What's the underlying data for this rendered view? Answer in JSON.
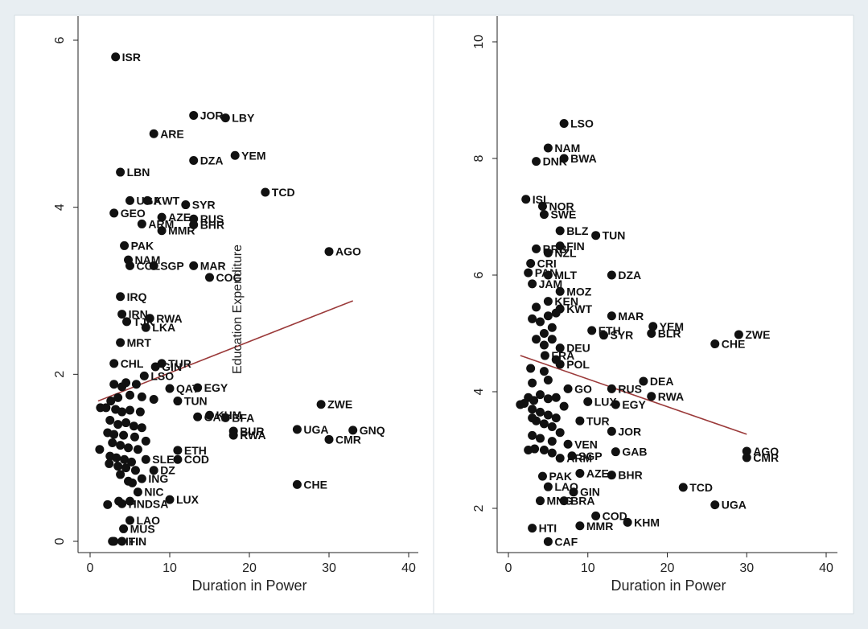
{
  "chart_data": [
    {
      "type": "scatter",
      "title": "",
      "xlabel": "Duration in Power",
      "ylabel": "",
      "xlim": [
        0,
        40
      ],
      "ylim": [
        0,
        6
      ],
      "xticks": [
        0,
        10,
        20,
        30,
        40
      ],
      "yticks": [
        0,
        2,
        4,
        6
      ],
      "overlay_label": "Education Expenditure",
      "fit_line": {
        "x": [
          1,
          33
        ],
        "y": [
          1.68,
          2.88
        ],
        "color": "#9b3a3a"
      },
      "points": [
        {
          "label": "ISR",
          "x": 3.2,
          "y": 5.8
        },
        {
          "label": "JOR",
          "x": 13,
          "y": 5.1
        },
        {
          "label": "LBY",
          "x": 17,
          "y": 5.07
        },
        {
          "label": "ARE",
          "x": 8,
          "y": 4.88
        },
        {
          "label": "YEM",
          "x": 18.2,
          "y": 4.62
        },
        {
          "label": "DZA",
          "x": 13,
          "y": 4.56
        },
        {
          "label": "LBN",
          "x": 3.8,
          "y": 4.42
        },
        {
          "label": "TCD",
          "x": 22,
          "y": 4.18
        },
        {
          "label": "UGA",
          "x": 5,
          "y": 4.08
        },
        {
          "label": "KWT",
          "x": 7.2,
          "y": 4.08
        },
        {
          "label": "SYR",
          "x": 12,
          "y": 4.03
        },
        {
          "label": "GEO",
          "x": 3,
          "y": 3.93
        },
        {
          "label": "AZE",
          "x": 9,
          "y": 3.88
        },
        {
          "label": "RUS",
          "x": 13,
          "y": 3.86
        },
        {
          "label": "ARM",
          "x": 6.5,
          "y": 3.8
        },
        {
          "label": "BHR",
          "x": 13,
          "y": 3.79
        },
        {
          "label": "MMR",
          "x": 9,
          "y": 3.72
        },
        {
          "label": "PAK",
          "x": 4.3,
          "y": 3.54
        },
        {
          "label": "AGO",
          "x": 30,
          "y": 3.47
        },
        {
          "label": "NAM",
          "x": 4.8,
          "y": 3.37
        },
        {
          "label": "COL",
          "x": 5,
          "y": 3.3
        },
        {
          "label": "SGP",
          "x": 8,
          "y": 3.3
        },
        {
          "label": "MAR",
          "x": 13,
          "y": 3.3
        },
        {
          "label": "COG",
          "x": 15,
          "y": 3.16
        },
        {
          "label": "IRQ",
          "x": 3.8,
          "y": 2.93
        },
        {
          "label": "IRN",
          "x": 4,
          "y": 2.72
        },
        {
          "label": "RWA",
          "x": 7.5,
          "y": 2.67
        },
        {
          "label": "TJK",
          "x": 4.6,
          "y": 2.63
        },
        {
          "label": "LKA",
          "x": 7,
          "y": 2.56
        },
        {
          "label": "MRT",
          "x": 3.8,
          "y": 2.38
        },
        {
          "label": "CHL",
          "x": 3,
          "y": 2.13
        },
        {
          "label": "TUR",
          "x": 9,
          "y": 2.13
        },
        {
          "label": "GIN",
          "x": 8.2,
          "y": 2.09
        },
        {
          "label": "LSO",
          "x": 6.8,
          "y": 1.98
        },
        {
          "label": "QAT",
          "x": 10,
          "y": 1.83
        },
        {
          "label": "EGY",
          "x": 13.5,
          "y": 1.84
        },
        {
          "label": "TUN",
          "x": 11,
          "y": 1.68
        },
        {
          "label": "ZWE",
          "x": 29,
          "y": 1.64
        },
        {
          "label": "KHM",
          "x": 15,
          "y": 1.51
        },
        {
          "label": "BFA",
          "x": 17,
          "y": 1.48
        },
        {
          "label": "GAB",
          "x": 13.5,
          "y": 1.49
        },
        {
          "label": "BUR",
          "x": 18,
          "y": 1.32
        },
        {
          "label": "RWA",
          "x": 18,
          "y": 1.27
        },
        {
          "label": "UGA",
          "x": 26,
          "y": 1.34
        },
        {
          "label": "GNQ",
          "x": 33,
          "y": 1.33
        },
        {
          "label": "CMR",
          "x": 30,
          "y": 1.22
        },
        {
          "label": "ETH",
          "x": 11,
          "y": 1.09
        },
        {
          "label": "COD",
          "x": 11,
          "y": 0.98
        },
        {
          "label": "SLE",
          "x": 7,
          "y": 0.98
        },
        {
          "label": "DZ",
          "x": 8,
          "y": 0.85
        },
        {
          "label": "ING",
          "x": 6.5,
          "y": 0.75
        },
        {
          "label": "CHE",
          "x": 26,
          "y": 0.68
        },
        {
          "label": "NIC",
          "x": 6,
          "y": 0.59
        },
        {
          "label": "LUX",
          "x": 10,
          "y": 0.5
        },
        {
          "label": "HNDSA",
          "x": 4,
          "y": 0.45
        },
        {
          "label": "LAO",
          "x": 5,
          "y": 0.25
        },
        {
          "label": "MUS",
          "x": 4.2,
          "y": 0.15
        },
        {
          "label": "HTI",
          "x": 3,
          "y": 0.0
        },
        {
          "label": "FIN",
          "x": 4,
          "y": 0.0
        },
        {
          "label": "",
          "x": 1.3,
          "y": 1.6
        },
        {
          "label": "",
          "x": 2,
          "y": 1.6
        },
        {
          "label": "",
          "x": 3.2,
          "y": 1.58
        },
        {
          "label": "",
          "x": 4,
          "y": 1.55
        },
        {
          "label": "",
          "x": 5,
          "y": 1.57
        },
        {
          "label": "",
          "x": 6.3,
          "y": 1.55
        },
        {
          "label": "",
          "x": 2.5,
          "y": 1.45
        },
        {
          "label": "",
          "x": 3.5,
          "y": 1.4
        },
        {
          "label": "",
          "x": 4.5,
          "y": 1.42
        },
        {
          "label": "",
          "x": 5.5,
          "y": 1.38
        },
        {
          "label": "",
          "x": 6.5,
          "y": 1.36
        },
        {
          "label": "",
          "x": 2.2,
          "y": 1.3
        },
        {
          "label": "",
          "x": 3,
          "y": 1.28
        },
        {
          "label": "",
          "x": 4.2,
          "y": 1.27
        },
        {
          "label": "",
          "x": 5.6,
          "y": 1.25
        },
        {
          "label": "",
          "x": 7,
          "y": 1.2
        },
        {
          "label": "",
          "x": 2.8,
          "y": 1.18
        },
        {
          "label": "",
          "x": 3.8,
          "y": 1.15
        },
        {
          "label": "",
          "x": 4.8,
          "y": 1.12
        },
        {
          "label": "",
          "x": 6,
          "y": 1.1
        },
        {
          "label": "",
          "x": 1.2,
          "y": 1.1
        },
        {
          "label": "",
          "x": 2.5,
          "y": 1.02
        },
        {
          "label": "",
          "x": 3.3,
          "y": 1.0
        },
        {
          "label": "",
          "x": 4.3,
          "y": 0.98
        },
        {
          "label": "",
          "x": 5.2,
          "y": 0.95
        },
        {
          "label": "",
          "x": 2.4,
          "y": 0.93
        },
        {
          "label": "",
          "x": 3.5,
          "y": 0.9
        },
        {
          "label": "",
          "x": 4.5,
          "y": 0.88
        },
        {
          "label": "",
          "x": 5.7,
          "y": 0.85
        },
        {
          "label": "",
          "x": 3.8,
          "y": 0.8
        },
        {
          "label": "",
          "x": 4.8,
          "y": 0.72
        },
        {
          "label": "",
          "x": 5.3,
          "y": 0.7
        },
        {
          "label": "",
          "x": 2.2,
          "y": 0.44
        },
        {
          "label": "",
          "x": 3.6,
          "y": 0.48
        },
        {
          "label": "",
          "x": 5,
          "y": 0.48
        },
        {
          "label": "",
          "x": 2.8,
          "y": 0.0
        },
        {
          "label": "",
          "x": 3.5,
          "y": 1.72
        },
        {
          "label": "",
          "x": 5,
          "y": 1.75
        },
        {
          "label": "",
          "x": 6.5,
          "y": 1.73
        },
        {
          "label": "",
          "x": 3,
          "y": 1.88
        },
        {
          "label": "",
          "x": 4.5,
          "y": 1.9
        },
        {
          "label": "",
          "x": 5.8,
          "y": 1.88
        },
        {
          "label": "",
          "x": 4,
          "y": 1.85
        },
        {
          "label": "",
          "x": 2.6,
          "y": 1.68
        },
        {
          "label": "",
          "x": 8,
          "y": 1.7
        }
      ]
    },
    {
      "type": "scatter",
      "title": "",
      "xlabel": "Duration in Power",
      "ylabel": "",
      "xlim": [
        0,
        40
      ],
      "ylim": [
        1.2,
        10
      ],
      "xticks": [
        0,
        10,
        20,
        30,
        40
      ],
      "yticks": [
        2,
        4,
        6,
        8,
        10
      ],
      "fit_line": {
        "x": [
          1.5,
          30
        ],
        "y": [
          4.62,
          3.27
        ],
        "color": "#9b3a3a"
      },
      "points": [
        {
          "label": "LSO",
          "x": 7,
          "y": 8.6
        },
        {
          "label": "NAM",
          "x": 5,
          "y": 8.18
        },
        {
          "label": "BWA",
          "x": 7,
          "y": 8.0
        },
        {
          "label": "DNK",
          "x": 3.5,
          "y": 7.95
        },
        {
          "label": "ISL",
          "x": 2.2,
          "y": 7.3
        },
        {
          "label": "NOR",
          "x": 4.3,
          "y": 7.18
        },
        {
          "label": "SWE",
          "x": 4.5,
          "y": 7.04
        },
        {
          "label": "BLZ",
          "x": 6.5,
          "y": 6.76
        },
        {
          "label": "TUN",
          "x": 11,
          "y": 6.68
        },
        {
          "label": "FIN",
          "x": 6.5,
          "y": 6.5
        },
        {
          "label": "BRB",
          "x": 3.5,
          "y": 6.45
        },
        {
          "label": "NZL",
          "x": 5,
          "y": 6.38
        },
        {
          "label": "CRI",
          "x": 2.8,
          "y": 6.2
        },
        {
          "label": "MLT",
          "x": 5,
          "y": 6.0
        },
        {
          "label": "PAN",
          "x": 2.5,
          "y": 6.04
        },
        {
          "label": "DZA",
          "x": 13,
          "y": 6.0
        },
        {
          "label": "JAM",
          "x": 3,
          "y": 5.85
        },
        {
          "label": "MOZ",
          "x": 6.5,
          "y": 5.72
        },
        {
          "label": "KEN",
          "x": 5,
          "y": 5.55
        },
        {
          "label": "KWT",
          "x": 6.5,
          "y": 5.42
        },
        {
          "label": "MAR",
          "x": 13,
          "y": 5.3
        },
        {
          "label": "YEM",
          "x": 18.2,
          "y": 5.12
        },
        {
          "label": "ETH",
          "x": 10.5,
          "y": 5.05
        },
        {
          "label": "BLR",
          "x": 18,
          "y": 5.0
        },
        {
          "label": "ZWE",
          "x": 29,
          "y": 4.98
        },
        {
          "label": "SYR",
          "x": 12,
          "y": 4.97
        },
        {
          "label": "CHE",
          "x": 26,
          "y": 4.82
        },
        {
          "label": "DEU",
          "x": 6.5,
          "y": 4.75
        },
        {
          "label": "FRA",
          "x": 4.6,
          "y": 4.62
        },
        {
          "label": "POL",
          "x": 6.5,
          "y": 4.47
        },
        {
          "label": "DEA",
          "x": 17,
          "y": 4.18
        },
        {
          "label": "RUS",
          "x": 13,
          "y": 4.05
        },
        {
          "label": "RWA",
          "x": 18,
          "y": 3.92
        },
        {
          "label": "GO",
          "x": 7.5,
          "y": 4.05
        },
        {
          "label": "LUX",
          "x": 10,
          "y": 3.83
        },
        {
          "label": "EGY",
          "x": 13.5,
          "y": 3.78
        },
        {
          "label": "TUR",
          "x": 9,
          "y": 3.5
        },
        {
          "label": "JOR",
          "x": 13,
          "y": 3.32
        },
        {
          "label": "VEN",
          "x": 7.5,
          "y": 3.1
        },
        {
          "label": "GAB",
          "x": 13.5,
          "y": 2.97
        },
        {
          "label": "AGO",
          "x": 30,
          "y": 2.98
        },
        {
          "label": "CMR",
          "x": 30,
          "y": 2.87
        },
        {
          "label": "SGP",
          "x": 8,
          "y": 2.9
        },
        {
          "label": "ARM",
          "x": 6.5,
          "y": 2.86
        },
        {
          "label": "AZE",
          "x": 9,
          "y": 2.6
        },
        {
          "label": "BHR",
          "x": 13,
          "y": 2.57
        },
        {
          "label": "PAK",
          "x": 4.3,
          "y": 2.55
        },
        {
          "label": "TCD",
          "x": 22,
          "y": 2.36
        },
        {
          "label": "LAO",
          "x": 5,
          "y": 2.37
        },
        {
          "label": "GIN",
          "x": 8.2,
          "y": 2.28
        },
        {
          "label": "UGA",
          "x": 26,
          "y": 2.06
        },
        {
          "label": "MNG",
          "x": 4,
          "y": 2.13
        },
        {
          "label": "BRA",
          "x": 7,
          "y": 2.13
        },
        {
          "label": "COD",
          "x": 11,
          "y": 1.87
        },
        {
          "label": "KHM",
          "x": 15,
          "y": 1.76
        },
        {
          "label": "MMR",
          "x": 9,
          "y": 1.7
        },
        {
          "label": "HTI",
          "x": 3,
          "y": 1.66
        },
        {
          "label": "CAF",
          "x": 5,
          "y": 1.43
        },
        {
          "label": "",
          "x": 1.5,
          "y": 3.78
        },
        {
          "label": "",
          "x": 2.5,
          "y": 3.9
        },
        {
          "label": "",
          "x": 3.2,
          "y": 3.85
        },
        {
          "label": "",
          "x": 4,
          "y": 3.95
        },
        {
          "label": "",
          "x": 5,
          "y": 3.88
        },
        {
          "label": "",
          "x": 6,
          "y": 3.9
        },
        {
          "label": "",
          "x": 3,
          "y": 3.7
        },
        {
          "label": "",
          "x": 4,
          "y": 3.65
        },
        {
          "label": "",
          "x": 5,
          "y": 3.6
        },
        {
          "label": "",
          "x": 6,
          "y": 3.55
        },
        {
          "label": "",
          "x": 3.5,
          "y": 3.5
        },
        {
          "label": "",
          "x": 4.5,
          "y": 3.45
        },
        {
          "label": "",
          "x": 5.5,
          "y": 3.4
        },
        {
          "label": "",
          "x": 6.5,
          "y": 3.3
        },
        {
          "label": "",
          "x": 3,
          "y": 3.25
        },
        {
          "label": "",
          "x": 4,
          "y": 3.2
        },
        {
          "label": "",
          "x": 5.5,
          "y": 3.15
        },
        {
          "label": "",
          "x": 2.5,
          "y": 3.0
        },
        {
          "label": "",
          "x": 3.3,
          "y": 3.02
        },
        {
          "label": "",
          "x": 4.5,
          "y": 3.0
        },
        {
          "label": "",
          "x": 5.5,
          "y": 2.95
        },
        {
          "label": "",
          "x": 2.8,
          "y": 4.4
        },
        {
          "label": "",
          "x": 3,
          "y": 4.15
        },
        {
          "label": "",
          "x": 5,
          "y": 4.2
        },
        {
          "label": "",
          "x": 4.5,
          "y": 4.35
        },
        {
          "label": "",
          "x": 3.5,
          "y": 4.9
        },
        {
          "label": "",
          "x": 4.5,
          "y": 5.0
        },
        {
          "label": "",
          "x": 5.5,
          "y": 5.1
        },
        {
          "label": "",
          "x": 3,
          "y": 5.25
        },
        {
          "label": "",
          "x": 4,
          "y": 5.2
        },
        {
          "label": "",
          "x": 5,
          "y": 5.3
        },
        {
          "label": "",
          "x": 3.5,
          "y": 5.45
        },
        {
          "label": "",
          "x": 6,
          "y": 5.35
        },
        {
          "label": "",
          "x": 4.5,
          "y": 4.8
        },
        {
          "label": "",
          "x": 5.5,
          "y": 4.9
        },
        {
          "label": "",
          "x": 6,
          "y": 4.55
        },
        {
          "label": "",
          "x": 3,
          "y": 3.55
        },
        {
          "label": "",
          "x": 2,
          "y": 3.8
        },
        {
          "label": "",
          "x": 7,
          "y": 3.75
        }
      ]
    }
  ]
}
